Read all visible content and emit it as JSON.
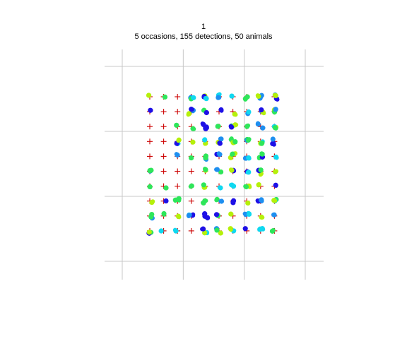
{
  "title": "1",
  "subtitle": "5 occasions, 155 detections, 50 animals",
  "chart_data": {
    "type": "scatter",
    "title": "1",
    "subtitle": "5 occasions, 155 detections, 50 animals",
    "xlabel": "",
    "ylabel": "",
    "axes_visible": false,
    "grid": true,
    "grid_lines_x": [
      0,
      100,
      200,
      300
    ],
    "grid_lines_y": [
      0,
      100,
      200,
      300
    ],
    "xlim": [
      -20,
      320
    ],
    "ylim": [
      -20,
      320
    ],
    "colors": {
      "trap": "#cc0000",
      "grid": "#c8c8c8",
      "occasions": [
        "#1e10e6",
        "#1e8ff0",
        "#10d8f0",
        "#2ee65a",
        "#b5f00a"
      ]
    },
    "traps": {
      "grid_size": [
        10,
        10
      ],
      "spacing": 30,
      "x_range": [
        -40,
        230
      ],
      "y_range": [
        -40,
        230
      ]
    },
    "detected_traps": [
      [
        0,
        0
      ],
      [
        1,
        0
      ],
      [
        3,
        0
      ],
      [
        4,
        0
      ],
      [
        5,
        0
      ],
      [
        6,
        0
      ],
      [
        7,
        0
      ],
      [
        8,
        0
      ],
      [
        9,
        0
      ],
      [
        0,
        1
      ],
      [
        3,
        1
      ],
      [
        4,
        1
      ],
      [
        5,
        1
      ],
      [
        6,
        1
      ],
      [
        7,
        1
      ],
      [
        8,
        1
      ],
      [
        9,
        1
      ],
      [
        2,
        2
      ],
      [
        3,
        2
      ],
      [
        4,
        2
      ],
      [
        5,
        2
      ],
      [
        6,
        2
      ],
      [
        7,
        2
      ],
      [
        8,
        2
      ],
      [
        9,
        2
      ],
      [
        2,
        3
      ],
      [
        3,
        3
      ],
      [
        4,
        3
      ],
      [
        5,
        3
      ],
      [
        6,
        3
      ],
      [
        7,
        3
      ],
      [
        8,
        3
      ],
      [
        9,
        3
      ],
      [
        2,
        4
      ],
      [
        3,
        4
      ],
      [
        4,
        4
      ],
      [
        5,
        4
      ],
      [
        6,
        4
      ],
      [
        7,
        4
      ],
      [
        8,
        4
      ],
      [
        9,
        4
      ],
      [
        0,
        5
      ],
      [
        4,
        5
      ],
      [
        5,
        5
      ],
      [
        6,
        5
      ],
      [
        7,
        5
      ],
      [
        8,
        5
      ],
      [
        9,
        5
      ],
      [
        0,
        6
      ],
      [
        1,
        6
      ],
      [
        3,
        6
      ],
      [
        4,
        6
      ],
      [
        5,
        6
      ],
      [
        6,
        6
      ],
      [
        7,
        6
      ],
      [
        8,
        6
      ],
      [
        9,
        6
      ],
      [
        0,
        7
      ],
      [
        1,
        7
      ],
      [
        2,
        7
      ],
      [
        4,
        7
      ],
      [
        5,
        7
      ],
      [
        6,
        7
      ],
      [
        7,
        7
      ],
      [
        8,
        7
      ],
      [
        9,
        7
      ],
      [
        0,
        8
      ],
      [
        1,
        8
      ],
      [
        2,
        8
      ],
      [
        3,
        8
      ],
      [
        4,
        8
      ],
      [
        5,
        8
      ],
      [
        6,
        8
      ],
      [
        7,
        8
      ],
      [
        8,
        8
      ],
      [
        9,
        8
      ],
      [
        0,
        9
      ],
      [
        1,
        9
      ],
      [
        2,
        9
      ],
      [
        4,
        9
      ],
      [
        5,
        9
      ],
      [
        6,
        9
      ],
      [
        7,
        9
      ],
      [
        8,
        9
      ],
      [
        9,
        9
      ]
    ]
  }
}
